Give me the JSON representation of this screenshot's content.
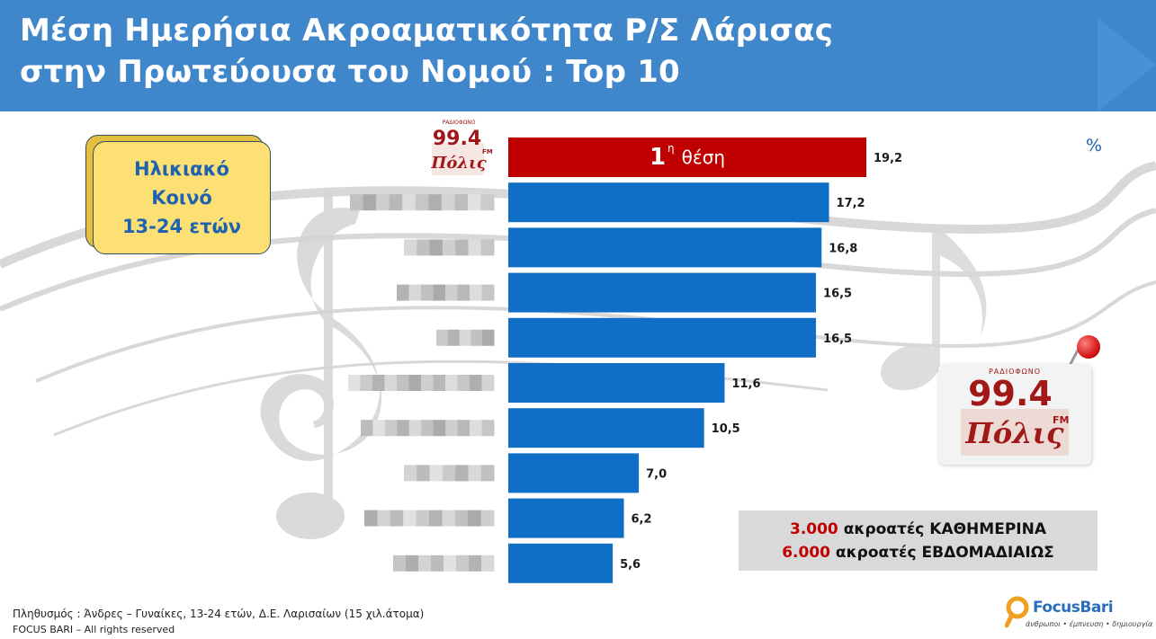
{
  "header": {
    "title_line1": "Μέση Ημερήσια Ακροαματικότητα Ρ/Σ Λάρισας",
    "title_line2": "στην Πρωτεύουσα του Νομού : Top 10"
  },
  "age_card": {
    "line1": "Ηλικιακό",
    "line2": "Κοινό",
    "line3": "13-24 ετών"
  },
  "unit_label": "%",
  "first_place": {
    "number": "1",
    "superscript": "η",
    "word": "θέση"
  },
  "logo": {
    "small_top_text": "ΡΑΔΙΟΦΩΝΟ",
    "frequency": "99.4",
    "fm": "FM",
    "script_name": "Πόλις"
  },
  "listeners": {
    "daily_count": "3.000",
    "daily_text": "ακροατές ΚΑΘΗΜΕΡΙΝΑ",
    "weekly_count": "6.000",
    "weekly_text": "ακροατές ΕΒΔΟΜΑΔΙΑΙΩΣ"
  },
  "footer": {
    "population": "Πληθυσμός : Άνδρες – Γυναίκες, 13-24 ετών, Δ.Ε. Λαρισαίων (15  χιλ.άτομα)",
    "rights": "FOCUS BARI – All rights reserved"
  },
  "brand": {
    "name": "FocusBari",
    "tagline": "άνθρωποι • έμπνευση • δημιουργία"
  },
  "colors": {
    "header_bg": "#3f86cb",
    "first_bar": "#c00000",
    "bar": "#0f6fc6",
    "age_card_bg": "#fde074",
    "age_card_text": "#1e62b0",
    "listeners_box_bg": "#d9d9d9",
    "listeners_number": "#c00000"
  },
  "chart_data": {
    "type": "bar",
    "orientation": "horizontal",
    "title": "Μέση Ημερήσια Ακροαματικότητα Ρ/Σ Λάρισας στην Πρωτεύουσα του Νομού : Top 10",
    "unit": "%",
    "categories_note": "station names blurred in original; first category shown as 99.4 Πόλις logo",
    "values": [
      19.2,
      17.2,
      16.8,
      16.5,
      16.5,
      11.6,
      10.5,
      7.0,
      6.2,
      5.6
    ],
    "value_labels": [
      "19,2",
      "17,2",
      "16,8",
      "16,5",
      "16,5",
      "11,6",
      "10,5",
      "7,0",
      "6,2",
      "5,6"
    ],
    "highlight_index": 0,
    "xlim": [
      0,
      19.2
    ],
    "grid": false,
    "legend": "none"
  }
}
